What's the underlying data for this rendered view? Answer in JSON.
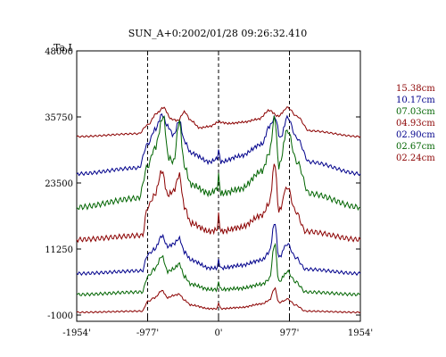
{
  "chart_data": {
    "type": "line",
    "title": "SUN_A+0:2002/01/28 09:26:32.410",
    "ylabel": "Ta,I",
    "xlabel": "",
    "ylim": [
      -1000,
      48000
    ],
    "xlim": [
      -1954,
      1954
    ],
    "x_ticks": [
      -1954,
      -977,
      0,
      977,
      1954
    ],
    "x_tick_labels": [
      "-1954'",
      "-977'",
      "0'",
      "977'",
      "1954'"
    ],
    "y_ticks": [
      -1000,
      11250,
      23500,
      35750,
      48000
    ],
    "y_tick_labels": [
      "-1000",
      "11250",
      "23500",
      "35750",
      "48000"
    ],
    "vertical_dashed_lines": [
      -977,
      0,
      977
    ],
    "grid": false,
    "legend_position": "right",
    "series": [
      {
        "name": "15.38cm",
        "color": "#8b0000",
        "baseline": 32100,
        "amplitude": 5400,
        "points": [
          [
            -1954,
            0
          ],
          [
            -1100,
            0.1
          ],
          [
            -977,
            0.4
          ],
          [
            -850,
            0.8
          ],
          [
            -760,
            1.0
          ],
          [
            -650,
            0.6
          ],
          [
            -560,
            0.55
          ],
          [
            -470,
            0.85
          ],
          [
            -380,
            0.55
          ],
          [
            -260,
            0.3
          ],
          [
            -120,
            0.35
          ],
          [
            0,
            0.5
          ],
          [
            150,
            0.45
          ],
          [
            350,
            0.5
          ],
          [
            550,
            0.6
          ],
          [
            700,
            0.9
          ],
          [
            820,
            0.7
          ],
          [
            950,
            1.0
          ],
          [
            1080,
            0.7
          ],
          [
            1250,
            0.2
          ],
          [
            1954,
            0
          ]
        ]
      },
      {
        "name": "10.17cm",
        "color": "#00008b",
        "baseline": 25200,
        "amplitude": 11000,
        "points": [
          [
            -1954,
            0
          ],
          [
            -1100,
            0.1
          ],
          [
            -977,
            0.5
          ],
          [
            -870,
            0.75
          ],
          [
            -780,
            1.0
          ],
          [
            -700,
            0.8
          ],
          [
            -620,
            0.65
          ],
          [
            -540,
            0.9
          ],
          [
            -470,
            0.55
          ],
          [
            -380,
            0.35
          ],
          [
            -120,
            0.2
          ],
          [
            -20,
            0.25
          ],
          [
            0,
            0.4
          ],
          [
            30,
            0.2
          ],
          [
            300,
            0.3
          ],
          [
            600,
            0.5
          ],
          [
            700,
            0.8
          ],
          [
            780,
            0.95
          ],
          [
            850,
            0.6
          ],
          [
            950,
            0.95
          ],
          [
            1080,
            0.6
          ],
          [
            1250,
            0.2
          ],
          [
            1954,
            0
          ]
        ]
      },
      {
        "name": "07.03cm",
        "color": "#006400",
        "baseline": 19000,
        "amplitude": 16800,
        "points": [
          [
            -1954,
            0
          ],
          [
            -1100,
            0.1
          ],
          [
            -977,
            0.45
          ],
          [
            -880,
            0.65
          ],
          [
            -760,
            1.0
          ],
          [
            -690,
            0.55
          ],
          [
            -620,
            0.5
          ],
          [
            -540,
            0.95
          ],
          [
            -470,
            0.45
          ],
          [
            -380,
            0.25
          ],
          [
            -120,
            0.15
          ],
          [
            -20,
            0.2
          ],
          [
            0,
            0.35
          ],
          [
            30,
            0.15
          ],
          [
            300,
            0.2
          ],
          [
            600,
            0.4
          ],
          [
            700,
            0.6
          ],
          [
            775,
            1.0
          ],
          [
            830,
            0.45
          ],
          [
            950,
            0.85
          ],
          [
            1080,
            0.5
          ],
          [
            1250,
            0.15
          ],
          [
            1954,
            0
          ]
        ]
      },
      {
        "name": "04.93cm",
        "color": "#8b0000",
        "baseline": 13000,
        "amplitude": 15000,
        "points": [
          [
            -1954,
            0
          ],
          [
            -1050,
            0.05
          ],
          [
            -977,
            0.4
          ],
          [
            -880,
            0.55
          ],
          [
            -780,
            0.85
          ],
          [
            -700,
            0.55
          ],
          [
            -620,
            0.6
          ],
          [
            -540,
            0.8
          ],
          [
            -470,
            0.4
          ],
          [
            -380,
            0.2
          ],
          [
            -120,
            0.1
          ],
          [
            -20,
            0.12
          ],
          [
            0,
            0.3
          ],
          [
            30,
            0.1
          ],
          [
            300,
            0.15
          ],
          [
            600,
            0.3
          ],
          [
            700,
            0.45
          ],
          [
            775,
            0.95
          ],
          [
            830,
            0.35
          ],
          [
            950,
            0.65
          ],
          [
            1060,
            0.35
          ],
          [
            1200,
            0.1
          ],
          [
            1954,
            0
          ]
        ]
      },
      {
        "name": "02.90cm",
        "color": "#00008b",
        "baseline": 6700,
        "amplitude": 10000,
        "points": [
          [
            -1954,
            0
          ],
          [
            -1050,
            0.05
          ],
          [
            -977,
            0.35
          ],
          [
            -880,
            0.45
          ],
          [
            -780,
            0.7
          ],
          [
            -700,
            0.5
          ],
          [
            -620,
            0.55
          ],
          [
            -540,
            0.65
          ],
          [
            -470,
            0.4
          ],
          [
            -380,
            0.25
          ],
          [
            -120,
            0.1
          ],
          [
            -20,
            0.1
          ],
          [
            0,
            0.25
          ],
          [
            30,
            0.1
          ],
          [
            300,
            0.15
          ],
          [
            600,
            0.25
          ],
          [
            700,
            0.4
          ],
          [
            775,
            0.95
          ],
          [
            830,
            0.3
          ],
          [
            950,
            0.55
          ],
          [
            1060,
            0.3
          ],
          [
            1200,
            0.08
          ],
          [
            1954,
            0
          ]
        ]
      },
      {
        "name": "02.67cm",
        "color": "#006400",
        "baseline": 2800,
        "amplitude": 9500,
        "points": [
          [
            -1954,
            0
          ],
          [
            -1050,
            0.05
          ],
          [
            -977,
            0.35
          ],
          [
            -880,
            0.5
          ],
          [
            -780,
            0.75
          ],
          [
            -700,
            0.45
          ],
          [
            -620,
            0.5
          ],
          [
            -540,
            0.6
          ],
          [
            -470,
            0.35
          ],
          [
            -380,
            0.2
          ],
          [
            -120,
            0.1
          ],
          [
            -20,
            0.1
          ],
          [
            0,
            0.25
          ],
          [
            30,
            0.1
          ],
          [
            300,
            0.12
          ],
          [
            600,
            0.2
          ],
          [
            700,
            0.3
          ],
          [
            775,
            1.0
          ],
          [
            830,
            0.25
          ],
          [
            950,
            0.45
          ],
          [
            1060,
            0.25
          ],
          [
            1200,
            0.05
          ],
          [
            1954,
            0
          ]
        ]
      },
      {
        "name": "02.24cm",
        "color": "#8b0000",
        "baseline": -500,
        "amplitude": 4500,
        "points": [
          [
            -1954,
            0
          ],
          [
            -1050,
            0.05
          ],
          [
            -977,
            0.45
          ],
          [
            -880,
            0.6
          ],
          [
            -780,
            0.9
          ],
          [
            -700,
            0.6
          ],
          [
            -620,
            0.7
          ],
          [
            -540,
            0.75
          ],
          [
            -470,
            0.5
          ],
          [
            -380,
            0.3
          ],
          [
            -120,
            0.15
          ],
          [
            -20,
            0.15
          ],
          [
            0,
            0.4
          ],
          [
            30,
            0.15
          ],
          [
            300,
            0.2
          ],
          [
            600,
            0.35
          ],
          [
            700,
            0.5
          ],
          [
            775,
            1.0
          ],
          [
            830,
            0.4
          ],
          [
            950,
            0.55
          ],
          [
            1060,
            0.3
          ],
          [
            1200,
            0.05
          ],
          [
            1954,
            0
          ]
        ]
      }
    ]
  }
}
